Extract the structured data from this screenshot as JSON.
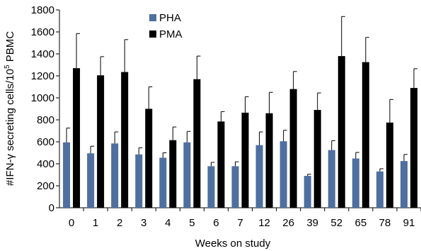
{
  "chart_data": {
    "type": "bar",
    "xlabel": "Weeks on study",
    "ylabel_main": "#IFN-γ secreting cells/10",
    "ylabel_sup": "5",
    "ylabel_tail": " PBMC",
    "ylim": [
      0,
      1800
    ],
    "yticks": [
      0,
      200,
      400,
      600,
      800,
      1000,
      1200,
      1400,
      1600,
      1800
    ],
    "ytick_labels": [
      "0",
      "200",
      "400",
      "600",
      "800",
      "1000",
      "1200",
      "1400",
      "1600",
      "1800"
    ],
    "categories": [
      "0",
      "1",
      "2",
      "3",
      "4",
      "5",
      "6",
      "7",
      "12",
      "26",
      "39",
      "52",
      "65",
      "78",
      "91"
    ],
    "series": [
      {
        "name": "PHA",
        "color": "#4F6FA0",
        "values": [
          595,
          495,
          585,
          485,
          455,
          595,
          378,
          378,
          570,
          605,
          290,
          525,
          448,
          330,
          425
        ],
        "errors": [
          130,
          65,
          105,
          60,
          45,
          100,
          35,
          40,
          120,
          100,
          15,
          85,
          55,
          25,
          60
        ]
      },
      {
        "name": "PMA",
        "color": "#000000",
        "values": [
          1270,
          1205,
          1235,
          900,
          615,
          1170,
          785,
          865,
          860,
          1080,
          890,
          1380,
          1325,
          775,
          1090
        ],
        "errors": [
          315,
          170,
          295,
          200,
          120,
          210,
          90,
          145,
          190,
          160,
          155,
          360,
          225,
          210,
          175
        ]
      }
    ],
    "legend_position": "top-left-inside",
    "grid": false
  }
}
